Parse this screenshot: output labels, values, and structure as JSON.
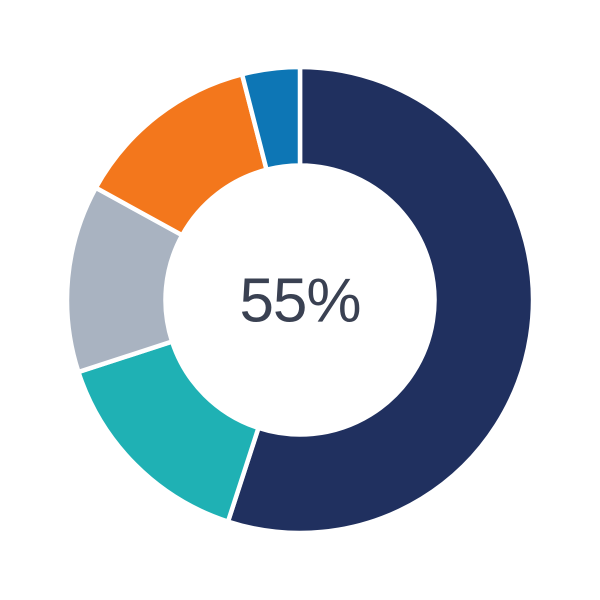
{
  "page": {
    "background_color": "#ffffff"
  },
  "chart_data": {
    "type": "pie",
    "variant": "donut",
    "title": "",
    "legend": "none",
    "start_angle_deg": 0,
    "direction": "clockwise",
    "center_label": "55%",
    "center_label_color": "#3a4152",
    "separator_color": "#ffffff",
    "slices": [
      {
        "name": "navy",
        "value": 55,
        "color": "#20305f"
      },
      {
        "name": "teal",
        "value": 15,
        "color": "#1fb1b4"
      },
      {
        "name": "gray",
        "value": 13,
        "color": "#a9b3c1"
      },
      {
        "name": "orange",
        "value": 13,
        "color": "#f3771c"
      },
      {
        "name": "blue",
        "value": 4,
        "color": "#0d76b5"
      }
    ]
  }
}
